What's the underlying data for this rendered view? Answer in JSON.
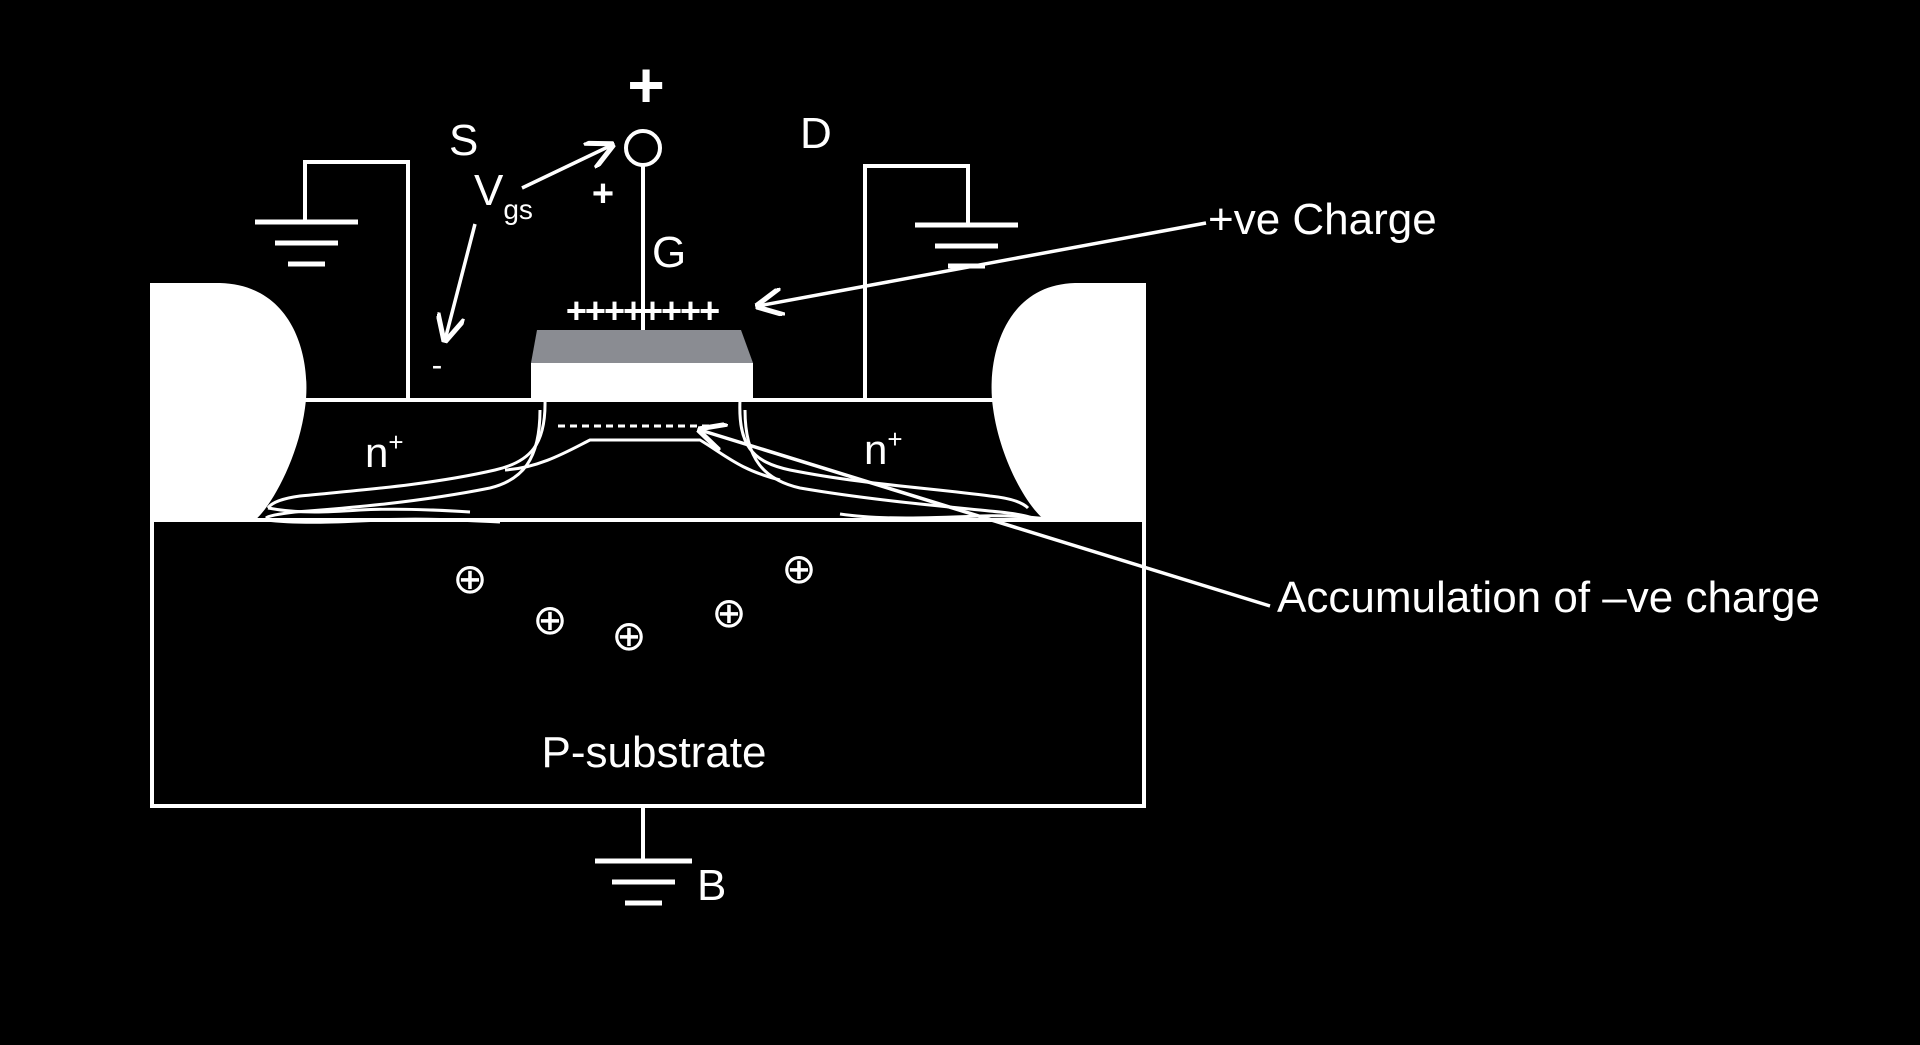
{
  "colors": {
    "background": "#000000",
    "foreground": "#ffffff",
    "gate_metal": "#8a8c92"
  },
  "terminals": {
    "source": "S",
    "drain": "D",
    "gate": "G",
    "body": "B"
  },
  "voltage": {
    "label_main": "V",
    "label_sub": "gs",
    "top_plus": "+",
    "plus_sign": "+",
    "minus_sign": "-"
  },
  "regions": {
    "source_doping": "n",
    "drain_doping": "n",
    "doping_superscript": "+",
    "substrate": "P-substrate"
  },
  "charges": {
    "gate_plus_row": "++++++++",
    "substrate_holes_symbol": "⊕",
    "channel_negative_row": "- - - - - - - - - - - - -"
  },
  "annotations": {
    "positive_charge": "+ve Charge",
    "negative_charge": "Accumulation of –ve charge"
  }
}
